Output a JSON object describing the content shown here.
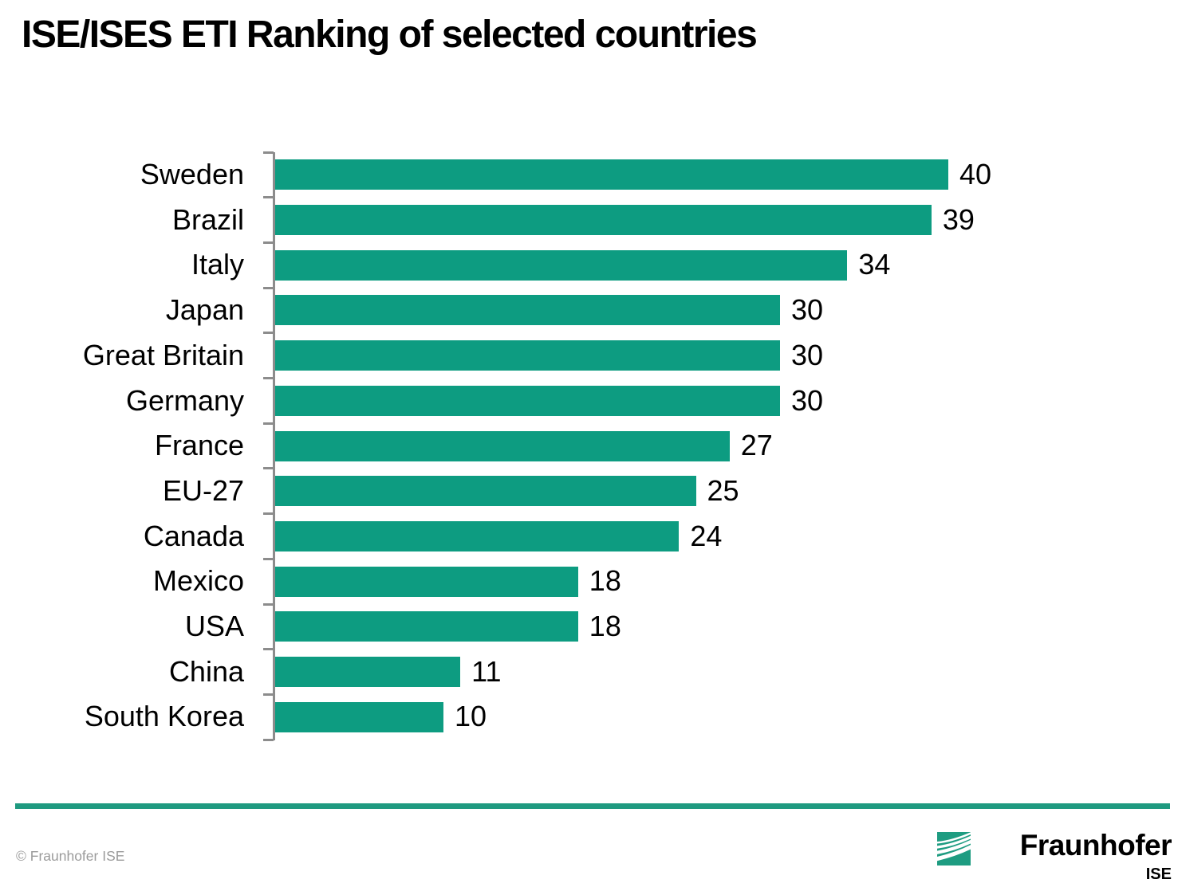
{
  "title": "ISE/ISES ETI Ranking of selected countries",
  "chart_data": {
    "type": "bar",
    "orientation": "horizontal",
    "title": "ISE/ISES ETI Ranking of selected countries",
    "categories": [
      "Sweden",
      "Brazil",
      "Italy",
      "Japan",
      "Great Britain",
      "Germany",
      "France",
      "EU-27",
      "Canada",
      "Mexico",
      "USA",
      "China",
      "South Korea"
    ],
    "values": [
      40,
      39,
      34,
      30,
      30,
      30,
      27,
      25,
      24,
      18,
      18,
      11,
      10
    ],
    "xlabel": "",
    "ylabel": "",
    "xlim": [
      0,
      40
    ],
    "grid": false,
    "legend": false,
    "value_labels_shown": true,
    "bar_color": "#0d9c81",
    "axis_color": "#8c8c8c"
  },
  "footer": {
    "copyright": "© Fraunhofer ISE",
    "logo_text": "Fraunhofer",
    "logo_institute": "ISE",
    "divider_color": "#1f9a80",
    "brand_green": "#1e9c81"
  }
}
